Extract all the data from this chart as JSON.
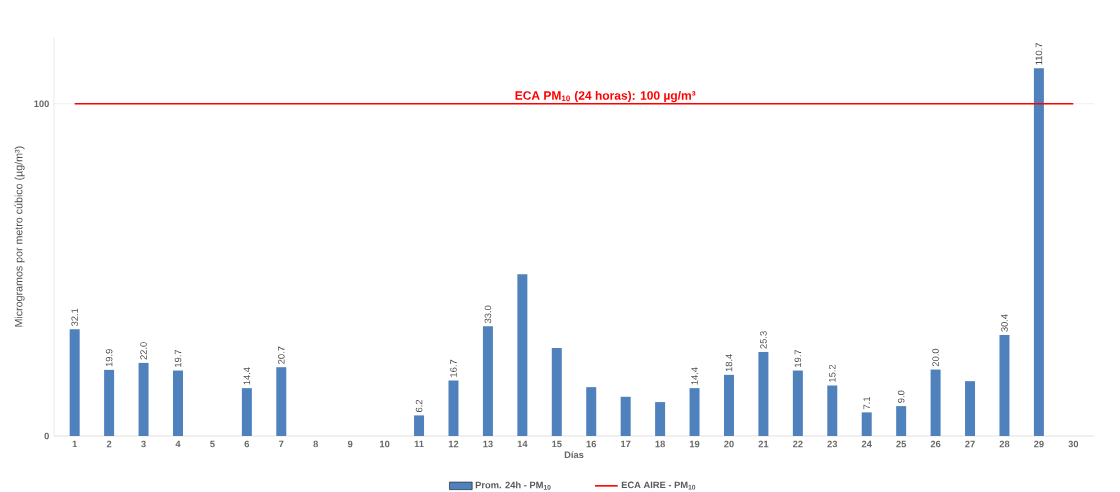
{
  "chart_data": {
    "type": "bar",
    "xlabel": "Días",
    "ylabel": "Microgramos por metro cúbico (µg/m³)",
    "categories": [
      "1",
      "2",
      "3",
      "4",
      "5",
      "6",
      "7",
      "8",
      "9",
      "10",
      "11",
      "12",
      "13",
      "14",
      "15",
      "16",
      "17",
      "18",
      "19",
      "20",
      "21",
      "22",
      "23",
      "24",
      "25",
      "26",
      "27",
      "28",
      "29",
      "30"
    ],
    "series": [
      {
        "name": "Prom. 24h - PM$_{10}$",
        "color": "#4f81bd",
        "values": [
          32.1,
          19.9,
          22.0,
          19.7,
          null,
          14.4,
          20.7,
          null,
          null,
          null,
          6.2,
          16.7,
          33.0,
          48.7,
          26.5,
          14.7,
          11.8,
          10.2,
          14.4,
          18.4,
          25.3,
          19.7,
          15.2,
          7.1,
          9.0,
          20.0,
          16.5,
          30.4,
          110.7,
          null
        ],
        "value_labels": [
          "32.1",
          "19.9",
          "22.0",
          "19.7",
          null,
          "14.4",
          "20.7",
          null,
          null,
          null,
          "6.2",
          "16.7",
          "33.0",
          null,
          null,
          null,
          null,
          null,
          "14.4",
          "18.4",
          "25.3",
          "19.7",
          "15.2",
          "7.1",
          "9.0",
          "20.0",
          null,
          "30.4",
          "110.7",
          null
        ]
      },
      {
        "name": "ECA AIRE - PM$_{10}$",
        "type": "line",
        "color": "#ff0000",
        "values": [
          100,
          100,
          100,
          100,
          100,
          100,
          100,
          100,
          100,
          100,
          100,
          100,
          100,
          100,
          100,
          100,
          100,
          100,
          100,
          100,
          100,
          100,
          100,
          100,
          100,
          100,
          100,
          100,
          100,
          100
        ]
      }
    ],
    "annotations": [
      {
        "text": "ECA PM$_{10}$ (24 horas):  100 µg/m³",
        "y": 100
      }
    ],
    "ylim": [
      0,
      120
    ],
    "yticks": [
      0,
      100
    ],
    "grid": "y",
    "legend": "bottom"
  }
}
